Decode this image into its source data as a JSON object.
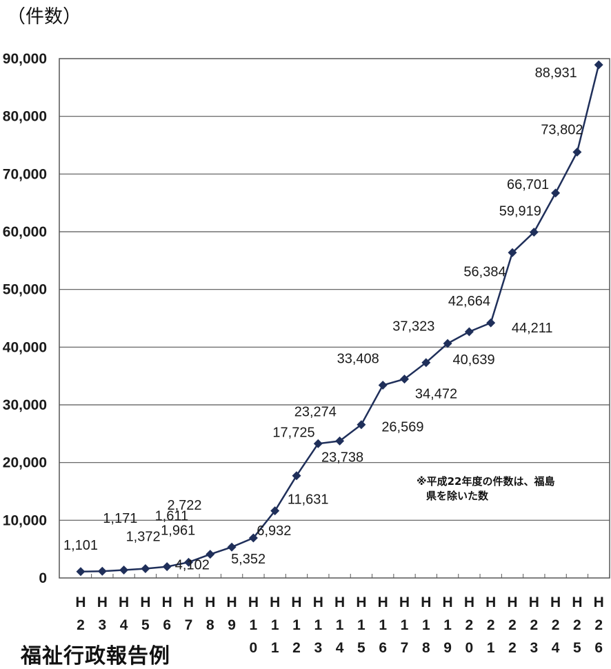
{
  "unit_label": "（件数）",
  "note_line1": "※平成22年度の件数は、福島",
  "note_line2": "県を除いた数",
  "source": "福祉行政報告例",
  "colors": {
    "line": "#1f2f5a",
    "grid": "#555555"
  },
  "chart_data": {
    "type": "line",
    "title": "",
    "xlabel": "",
    "ylabel": "",
    "ylim": [
      0,
      90000
    ],
    "yticks": [
      0,
      10000,
      20000,
      30000,
      40000,
      50000,
      60000,
      70000,
      80000,
      90000
    ],
    "ytick_labels": [
      "0",
      "10,000",
      "20,000",
      "30,000",
      "40,000",
      "50,000",
      "60,000",
      "70,000",
      "80,000",
      "90,000"
    ],
    "categories": [
      "H2",
      "H3",
      "H4",
      "H5",
      "H6",
      "H7",
      "H8",
      "H9",
      "H10",
      "H11",
      "H12",
      "H13",
      "H14",
      "H15",
      "H16",
      "H17",
      "H18",
      "H19",
      "H20",
      "H21",
      "H22",
      "H23",
      "H24",
      "H25",
      "H26"
    ],
    "values": [
      1101,
      1171,
      1372,
      1611,
      1961,
      2722,
      4102,
      5352,
      6932,
      11631,
      17725,
      23274,
      23738,
      26569,
      33408,
      34472,
      37323,
      40639,
      42664,
      44211,
      56384,
      59919,
      66701,
      73802,
      88931
    ],
    "data_labels": [
      "1,101",
      "1,171",
      "1,372",
      "1,611",
      "1,961",
      "2,722",
      "4,102",
      "5,352",
      "6,932",
      "11,631",
      "17,725",
      "23,274",
      "23,738",
      "26,569",
      "33,408",
      "34,472",
      "37,323",
      "40,639",
      "42,664",
      "44,211",
      "56,384",
      "59,919",
      "66,701",
      "73,802",
      "88,931"
    ],
    "grid": true
  }
}
